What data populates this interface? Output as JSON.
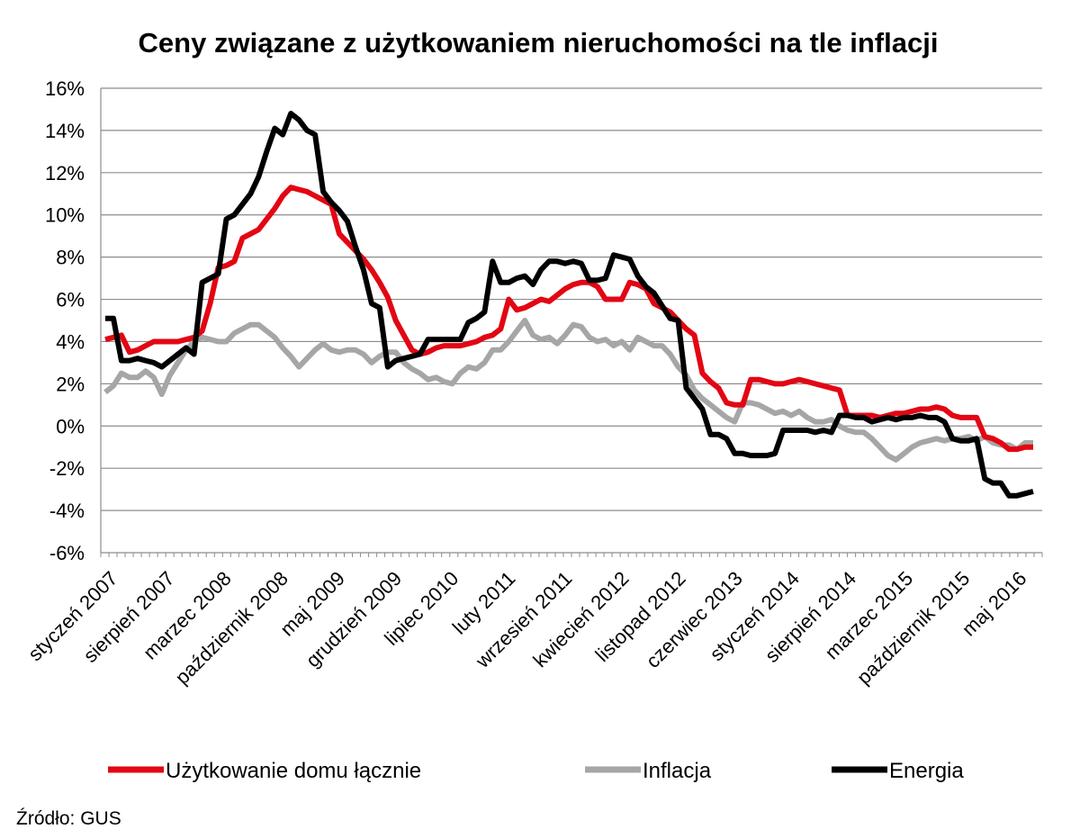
{
  "chart_data": {
    "type": "line",
    "title": "Ceny związane z użytkowaniem nieruchomości na tle inflacji",
    "xlabel": "",
    "ylabel": "",
    "ylim": [
      -6,
      16
    ],
    "y_ticks": [
      "16%",
      "14%",
      "12%",
      "10%",
      "8%",
      "6%",
      "4%",
      "2%",
      "0%",
      "-2%",
      "-4%",
      "-6%"
    ],
    "y_tick_values": [
      16,
      14,
      12,
      10,
      8,
      6,
      4,
      2,
      0,
      -2,
      -4,
      -6
    ],
    "x_tick_labels": [
      "styczeń 2007",
      "sierpień 2007",
      "marzec 2008",
      "październik 2008",
      "maj 2009",
      "grudzień 2009",
      "lipiec 2010",
      "luty 2011",
      "wrzesień 2011",
      "kwiecień 2012",
      "listopad 2012",
      "czerwiec 2013",
      "styczeń 2014",
      "sierpień 2014",
      "marzec 2015",
      "październik 2015",
      "maj 2016"
    ],
    "grid": true,
    "legend_position": "bottom",
    "series": [
      {
        "name": "Użytkowanie domu łącznie",
        "color": "#e30613",
        "values": [
          4.1,
          4.2,
          4.3,
          3.5,
          3.6,
          3.8,
          4.0,
          4.0,
          4.0,
          4.0,
          4.1,
          4.2,
          4.5,
          5.8,
          7.5,
          7.6,
          7.8,
          8.9,
          9.1,
          9.3,
          9.8,
          10.3,
          10.9,
          11.3,
          11.2,
          11.1,
          10.9,
          10.7,
          10.5,
          9.1,
          8.7,
          8.3,
          7.9,
          7.4,
          6.8,
          6.1,
          5.0,
          4.3,
          3.6,
          3.4,
          3.5,
          3.7,
          3.8,
          3.8,
          3.8,
          3.9,
          4.0,
          4.2,
          4.3,
          4.6,
          6.0,
          5.5,
          5.6,
          5.8,
          6.0,
          5.9,
          6.2,
          6.5,
          6.7,
          6.8,
          6.8,
          6.6,
          6.0,
          6.0,
          6.0,
          6.8,
          6.7,
          6.5,
          5.8,
          5.6,
          5.4,
          5.0,
          4.6,
          4.3,
          2.5,
          2.1,
          1.8,
          1.1,
          1.0,
          1.0,
          2.2,
          2.2,
          2.1,
          2.0,
          2.0,
          2.1,
          2.2,
          2.1,
          2.0,
          1.9,
          1.8,
          1.7,
          0.5,
          0.5,
          0.5,
          0.5,
          0.4,
          0.5,
          0.6,
          0.6,
          0.7,
          0.8,
          0.8,
          0.9,
          0.8,
          0.5,
          0.4,
          0.4,
          0.4,
          -0.5,
          -0.6,
          -0.8,
          -1.1,
          -1.1,
          -1.0,
          -1.0
        ]
      },
      {
        "name": "Inflacja",
        "color": "#a6a6a6",
        "values": [
          1.6,
          1.9,
          2.5,
          2.3,
          2.3,
          2.6,
          2.3,
          1.5,
          2.4,
          3.0,
          3.6,
          4.0,
          4.2,
          4.1,
          4.0,
          4.0,
          4.4,
          4.6,
          4.8,
          4.8,
          4.5,
          4.2,
          3.7,
          3.3,
          2.8,
          3.2,
          3.6,
          3.9,
          3.6,
          3.5,
          3.6,
          3.6,
          3.4,
          3.0,
          3.3,
          3.5,
          3.5,
          3.0,
          2.7,
          2.5,
          2.2,
          2.3,
          2.1,
          2.0,
          2.5,
          2.8,
          2.7,
          3.0,
          3.6,
          3.6,
          4.0,
          4.5,
          5.0,
          4.3,
          4.1,
          4.2,
          3.9,
          4.3,
          4.8,
          4.7,
          4.2,
          4.0,
          4.1,
          3.8,
          4.0,
          3.6,
          4.2,
          4.0,
          3.8,
          3.8,
          3.4,
          2.8,
          2.4,
          1.7,
          1.3,
          1.0,
          0.7,
          0.4,
          0.2,
          1.1,
          1.1,
          1.0,
          0.8,
          0.6,
          0.7,
          0.5,
          0.7,
          0.4,
          0.2,
          0.2,
          0.3,
          0.0,
          -0.2,
          -0.3,
          -0.3,
          -0.6,
          -1.0,
          -1.4,
          -1.6,
          -1.3,
          -1.0,
          -0.8,
          -0.7,
          -0.6,
          -0.7,
          -0.6,
          -0.6,
          -0.5,
          -0.7,
          -0.5,
          -0.8,
          -0.9,
          -0.9,
          -1.1,
          -0.8,
          -0.8
        ]
      },
      {
        "name": "Energia",
        "color": "#000000",
        "values": [
          5.1,
          5.1,
          3.1,
          3.1,
          3.2,
          3.1,
          3.0,
          2.8,
          3.1,
          3.4,
          3.7,
          3.4,
          6.8,
          7.0,
          7.2,
          9.8,
          10.0,
          10.5,
          11.0,
          11.8,
          13.0,
          14.1,
          13.8,
          14.8,
          14.5,
          14.0,
          13.8,
          11.1,
          10.6,
          10.2,
          9.7,
          8.5,
          7.4,
          5.8,
          5.6,
          2.8,
          3.1,
          3.2,
          3.3,
          3.4,
          4.1,
          4.1,
          4.1,
          4.1,
          4.1,
          4.9,
          5.1,
          5.4,
          7.8,
          6.8,
          6.8,
          7.0,
          7.1,
          6.7,
          7.4,
          7.8,
          7.8,
          7.7,
          7.8,
          7.7,
          6.9,
          6.9,
          7.0,
          8.1,
          8.0,
          7.9,
          7.1,
          6.6,
          6.3,
          5.7,
          5.1,
          5.0,
          1.8,
          1.3,
          0.8,
          -0.4,
          -0.4,
          -0.6,
          -1.3,
          -1.3,
          -1.4,
          -1.4,
          -1.4,
          -1.3,
          -0.2,
          -0.2,
          -0.2,
          -0.2,
          -0.3,
          -0.2,
          -0.3,
          0.5,
          0.5,
          0.4,
          0.4,
          0.2,
          0.3,
          0.4,
          0.3,
          0.4,
          0.4,
          0.5,
          0.4,
          0.4,
          0.2,
          -0.6,
          -0.7,
          -0.7,
          -0.6,
          -2.5,
          -2.7,
          -2.7,
          -3.3,
          -3.3,
          -3.2,
          -3.1
        ]
      }
    ]
  },
  "source": "Źródło: GUS"
}
